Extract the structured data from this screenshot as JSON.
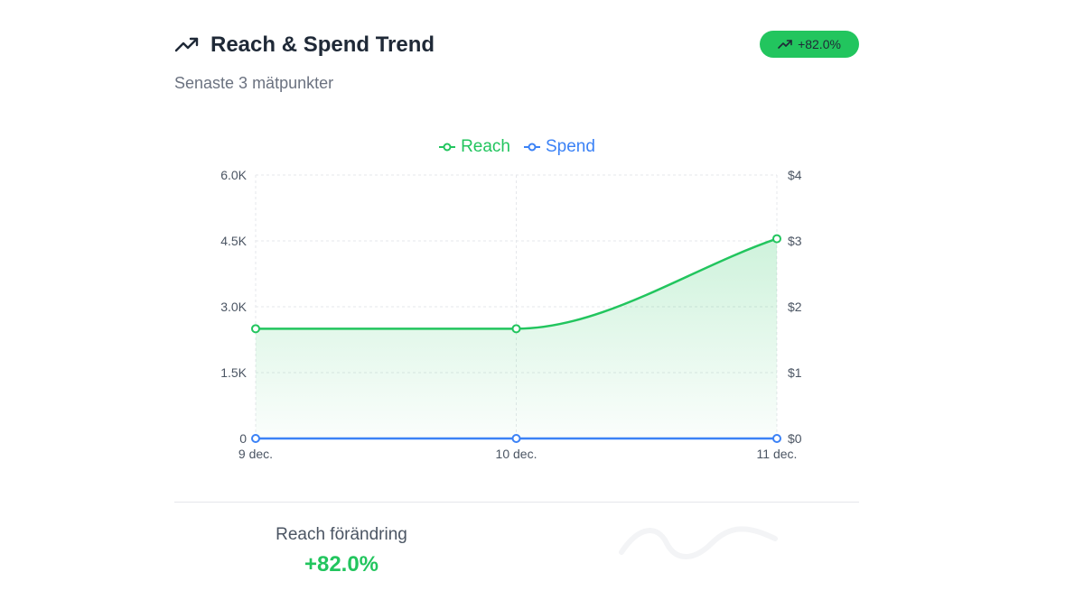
{
  "header": {
    "title": "Reach & Spend Trend",
    "subtitle": "Senaste 3 mätpunkter",
    "title_icon": "trending-up-icon",
    "badge_icon": "trending-up-icon",
    "badge_text": "+82.0%"
  },
  "colors": {
    "reach": "#22c55e",
    "spend": "#3b82f6",
    "badge_bg": "#22c55e",
    "grid": "#e5e7eb",
    "tick": "#4b5563"
  },
  "chart_data": {
    "type": "line",
    "categories": [
      "9 dec.",
      "10 dec.",
      "11 dec."
    ],
    "series": [
      {
        "name": "Reach",
        "values": [
          2500,
          2500,
          4550
        ],
        "axis": "left",
        "area": true,
        "color": "#22c55e"
      },
      {
        "name": "Spend",
        "values": [
          0,
          0,
          0
        ],
        "axis": "right",
        "area": false,
        "color": "#3b82f6"
      }
    ],
    "y_left": {
      "ylim": [
        0,
        6000
      ],
      "ticks": [
        0,
        1500,
        3000,
        4500,
        6000
      ],
      "tick_labels": [
        "0",
        "1.5K",
        "3.0K",
        "4.5K",
        "6.0K"
      ]
    },
    "y_right": {
      "ylim": [
        0,
        4
      ],
      "ticks": [
        0,
        1,
        2,
        3,
        4
      ],
      "tick_labels": [
        "$0",
        "$1",
        "$2",
        "$3",
        "$4"
      ]
    },
    "legend": {
      "position": "top-center",
      "entries": [
        "Reach",
        "Spend"
      ]
    },
    "grid": true
  },
  "summary": {
    "label": "Reach förändring",
    "value": "+82.0%"
  }
}
